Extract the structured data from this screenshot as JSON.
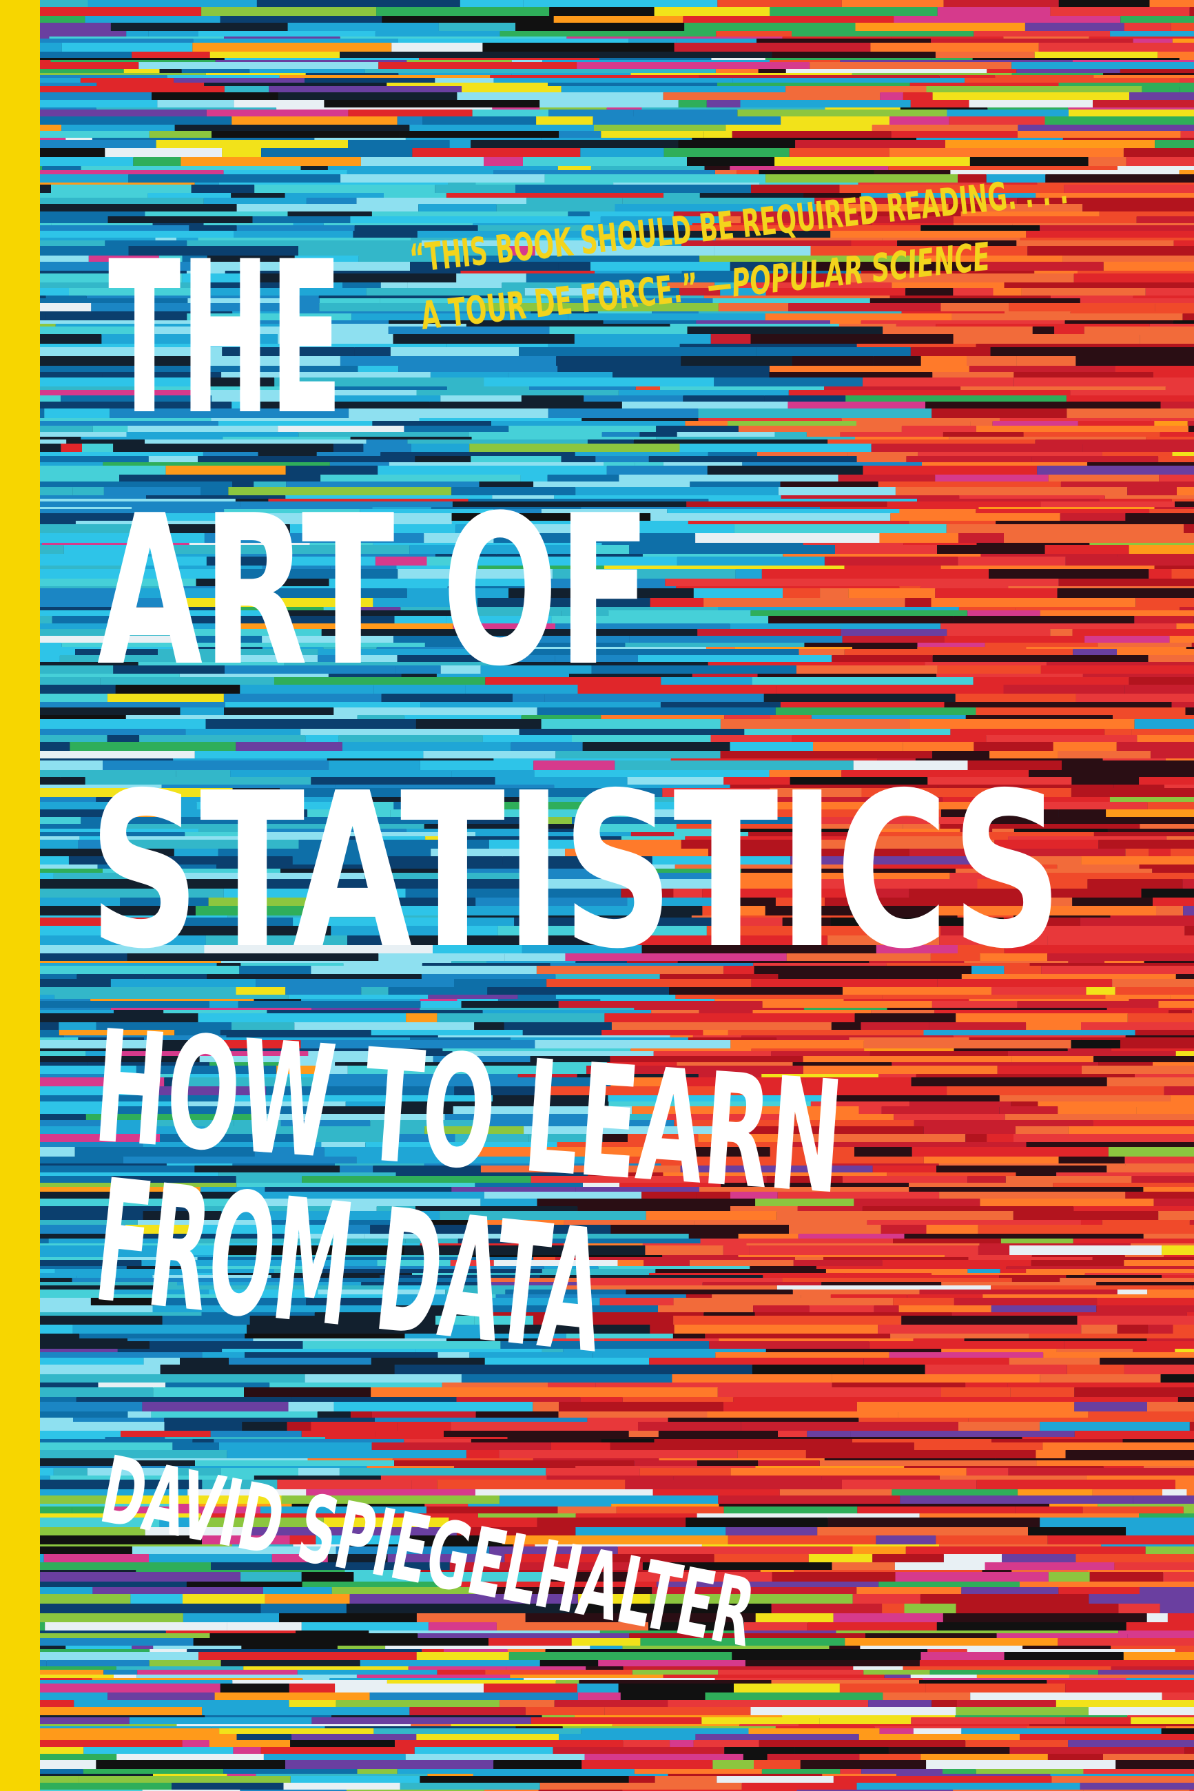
{
  "quote": {
    "line1": "“THIS BOOK SHOULD BE REQUIRED READING. . . .",
    "line2": "A TOUR DE FORCE.” —",
    "source": "POPULAR SCIENCE"
  },
  "title": {
    "lines": [
      "THE",
      "ART OF",
      "STATISTICS"
    ]
  },
  "subtitle": {
    "lines": [
      "HOW TO LEARN",
      "FROM DATA"
    ]
  },
  "author": "DAVID SPIEGELHALTER"
}
